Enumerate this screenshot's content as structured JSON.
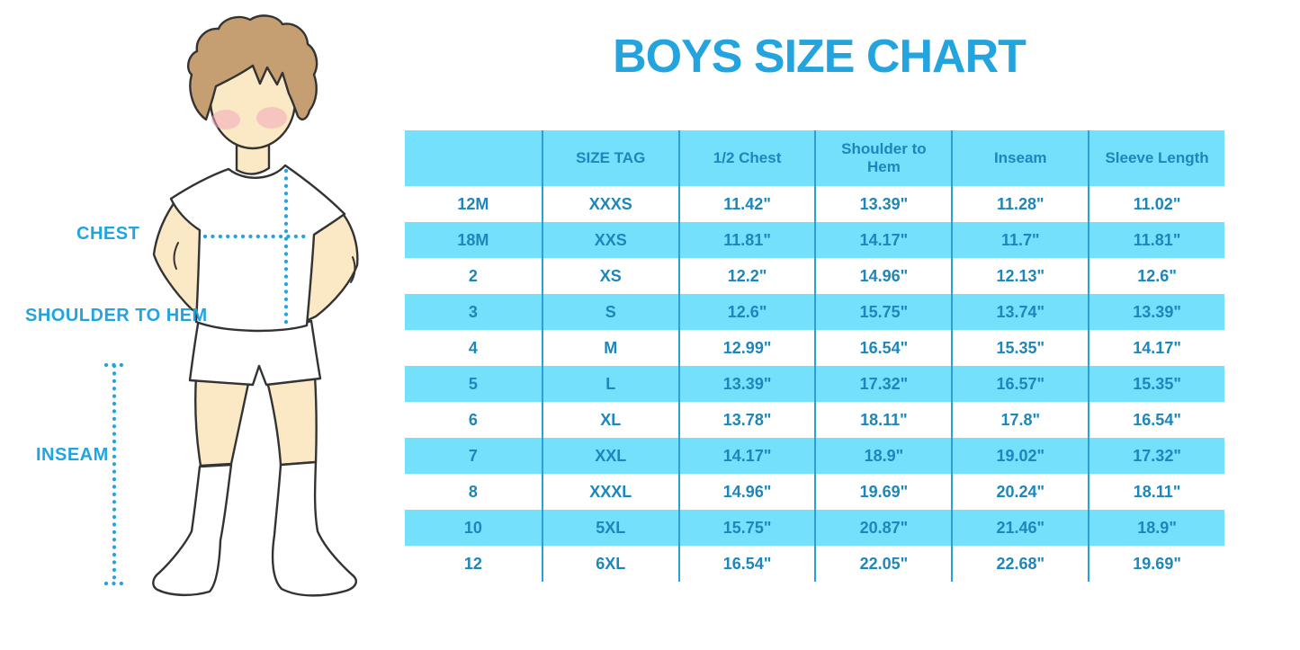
{
  "chart_data": {
    "type": "table",
    "title": "BOYS SIZE CHART",
    "columns": [
      "",
      "SIZE TAG",
      "1/2 Chest",
      "Shoulder to Hem",
      "Inseam",
      "Sleeve Length"
    ],
    "rows": [
      [
        "12M",
        "XXXS",
        "11.42\"",
        "13.39\"",
        "11.28\"",
        "11.02\""
      ],
      [
        "18M",
        "XXS",
        "11.81\"",
        "14.17\"",
        "11.7\"",
        "11.81\""
      ],
      [
        "2",
        "XS",
        "12.2\"",
        "14.96\"",
        "12.13\"",
        "12.6\""
      ],
      [
        "3",
        "S",
        "12.6\"",
        "15.75\"",
        "13.74\"",
        "13.39\""
      ],
      [
        "4",
        "M",
        "12.99\"",
        "16.54\"",
        "15.35\"",
        "14.17\""
      ],
      [
        "5",
        "L",
        "13.39\"",
        "17.32\"",
        "16.57\"",
        "15.35\""
      ],
      [
        "6",
        "XL",
        "13.78\"",
        "18.11\"",
        "17.8\"",
        "16.54\""
      ],
      [
        "7",
        "XXL",
        "14.17\"",
        "18.9\"",
        "19.02\"",
        "17.32\""
      ],
      [
        "8",
        "XXXL",
        "14.96\"",
        "19.69\"",
        "20.24\"",
        "18.11\""
      ],
      [
        "10",
        "5XL",
        "15.75\"",
        "20.87\"",
        "21.46\"",
        "18.9\""
      ],
      [
        "12",
        "6XL",
        "16.54\"",
        "22.05\"",
        "22.68\"",
        "19.69\""
      ]
    ],
    "layout": {
      "header_background": "cyan",
      "row_striping": "alternating cyan/white starting white after header",
      "grid": "vertical column separators only",
      "legend_position": "none"
    }
  },
  "illustration": {
    "labels": {
      "chest": "CHEST",
      "shoulder_to_hem": "SHOULDER TO HEM",
      "inseam": "INSEAM"
    }
  },
  "colors": {
    "accent_blue": "#24A4DE",
    "row_cyan": "#74E0FB",
    "table_text": "#1D86BA",
    "grid_line": "#2B9FD6",
    "hair_brown": "#C59E71",
    "skin": "#FBE8C4",
    "blush_pink": "#F2A8BC",
    "line_art": "#333333"
  }
}
